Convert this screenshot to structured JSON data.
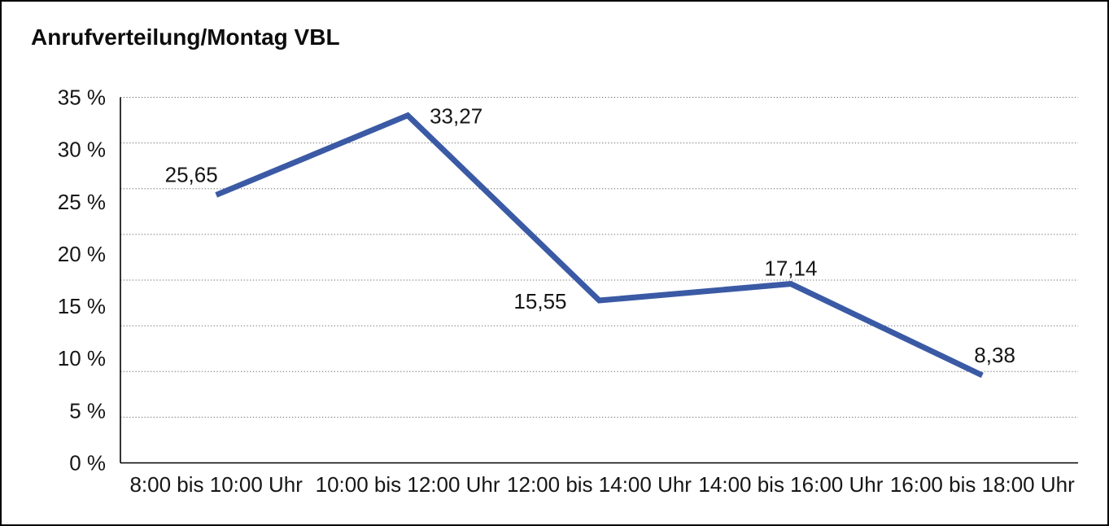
{
  "window": {
    "background_color": "#ffffff",
    "border_color": "#000000"
  },
  "chart_data": {
    "type": "line",
    "title": "Anrufverteilung/Montag VBL",
    "categories": [
      "8:00 bis 10:00 Uhr",
      "10:00 bis 12:00 Uhr",
      "12:00 bis 14:00 Uhr",
      "14:00 bis 16:00 Uhr",
      "16:00 bis 18:00 Uhr"
    ],
    "series": [
      {
        "name": "Anrufverteilung Montag VBL",
        "values": [
          25.65,
          33.27,
          15.55,
          17.14,
          8.38
        ],
        "point_labels": [
          "25,65",
          "33,27",
          "15,55",
          "17,14",
          "8,38"
        ]
      }
    ],
    "xlabel": "",
    "ylabel": "",
    "ylim": [
      0,
      35
    ],
    "yticks": [
      {
        "value": 35,
        "label": "35 %"
      },
      {
        "value": 30,
        "label": "30 %"
      },
      {
        "value": 25,
        "label": "25 %"
      },
      {
        "value": 20,
        "label": "20 %"
      },
      {
        "value": 15,
        "label": "15 %"
      },
      {
        "value": 10,
        "label": "10 %"
      },
      {
        "value": 5,
        "label": "5 %"
      },
      {
        "value": 0,
        "label": "0 %"
      }
    ],
    "grid": {
      "horizontal": true,
      "style": "dotted",
      "divisions": 8,
      "color": "#6e6e6e"
    },
    "legend_position": "none",
    "line_color": "#3b5aa5",
    "axis_color": "#000000",
    "text_color": "#161616"
  }
}
